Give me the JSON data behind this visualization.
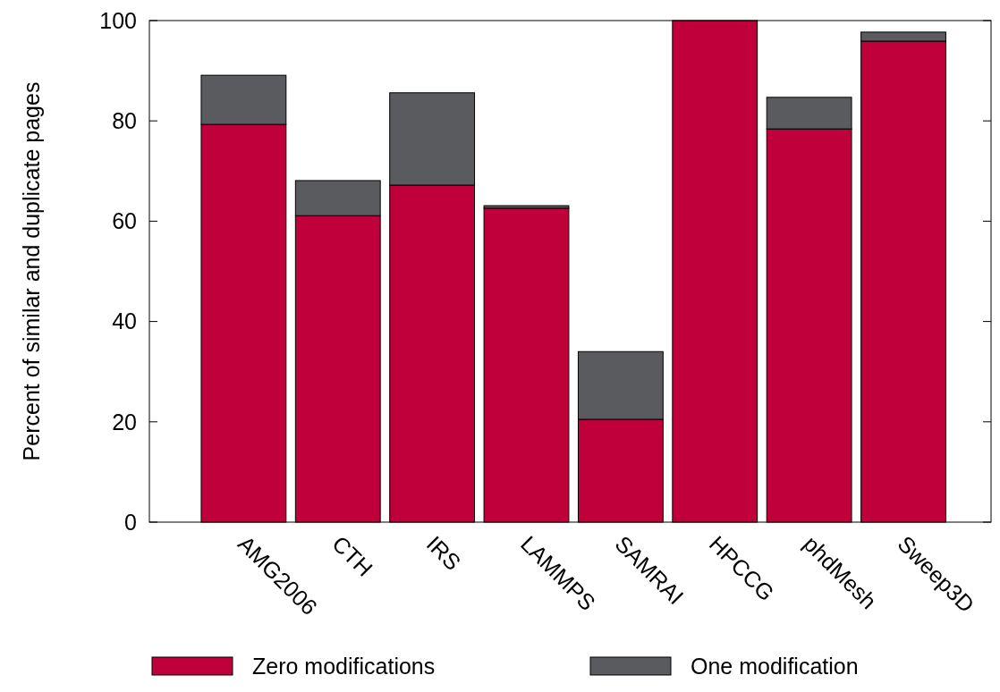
{
  "chart_data": {
    "type": "bar",
    "stacked": true,
    "ylabel": "Percent of similar and duplicate pages",
    "categories": [
      "AMG2006",
      "CTH",
      "IRS",
      "LAMMPS",
      "SAMRAI",
      "HPCCG",
      "phdMesh",
      "Sweep3D"
    ],
    "series": [
      {
        "name": "Zero modifications",
        "color": "#c0003a",
        "values": [
          79.3,
          61.1,
          67.2,
          62.6,
          20.5,
          100,
          78.4,
          95.9
        ]
      },
      {
        "name": "One modification",
        "color": "#5a5b5f",
        "values": [
          9.8,
          7.0,
          18.4,
          0.5,
          13.5,
          0,
          6.3,
          1.8
        ]
      }
    ],
    "ylim": [
      0,
      100
    ],
    "yticks": [
      0,
      20,
      40,
      60,
      80,
      100
    ],
    "legend": "bottom"
  }
}
